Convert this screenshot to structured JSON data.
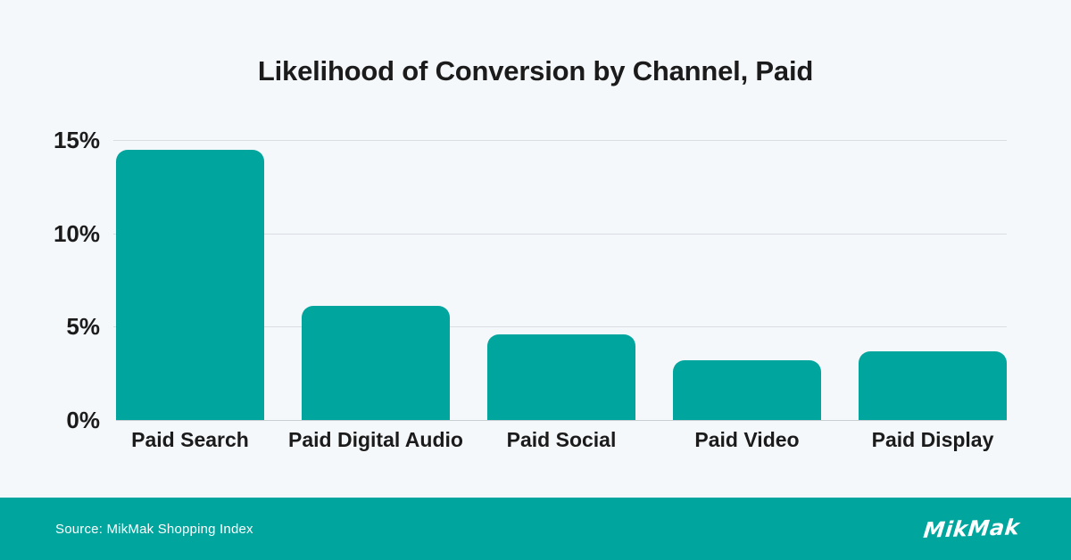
{
  "title": "Likelihood of Conversion by Channel, Paid",
  "chart_data": {
    "type": "bar",
    "title": "Likelihood of Conversion by Channel, Paid",
    "categories": [
      "Paid Search",
      "Paid Digital Audio",
      "Paid Social",
      "Paid Video",
      "Paid Display"
    ],
    "values": [
      14.5,
      6.1,
      4.6,
      3.2,
      3.7
    ],
    "value_unit": "%",
    "xlabel": "",
    "ylabel": "",
    "ylim": [
      0,
      15
    ],
    "yticks": [
      {
        "label": "0%",
        "value": 0
      },
      {
        "label": "5%",
        "value": 5
      },
      {
        "label": "10%",
        "value": 10
      },
      {
        "label": "15%",
        "value": 15
      }
    ],
    "grid": true,
    "legend": false,
    "bar_color": "#00A69E"
  },
  "footer": {
    "source_text": "Source: MikMak Shopping Index",
    "logo_text": "MikMak"
  },
  "colors": {
    "background": "#F4F8FA",
    "bar": "#00A69E",
    "footer_background": "#00A69E",
    "text": "#1B1B1B",
    "gridline": "#DADDE1",
    "axis_line": "#C9CED3",
    "footer_text": "#FFFFFF"
  }
}
